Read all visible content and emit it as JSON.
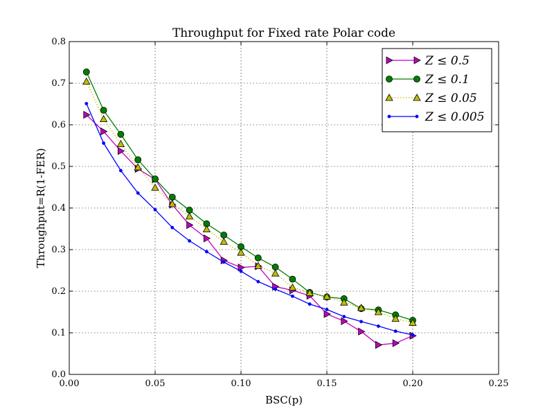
{
  "chart_data": {
    "type": "line",
    "title": "Throughput for Fixed rate Polar code",
    "xlabel": "BSC(p)",
    "ylabel": "Throughput=R(1-FER)",
    "xlim": [
      0.0,
      0.25
    ],
    "ylim": [
      0.0,
      0.8
    ],
    "xticks": [
      "0.00",
      "0.05",
      "0.10",
      "0.15",
      "0.20",
      "0.25"
    ],
    "yticks": [
      "0.0",
      "0.1",
      "0.2",
      "0.3",
      "0.4",
      "0.5",
      "0.6",
      "0.7",
      "0.8"
    ],
    "grid": true,
    "legend_position": "top-right",
    "x": [
      0.01,
      0.02,
      0.03,
      0.04,
      0.05,
      0.06,
      0.07,
      0.08,
      0.09,
      0.1,
      0.11,
      0.12,
      0.13,
      0.14,
      0.15,
      0.16,
      0.17,
      0.18,
      0.19,
      0.2
    ],
    "series": [
      {
        "name": "Z ≤ 0.5",
        "color": "#bf00bf",
        "marker": "triangle-right",
        "line_style": "solid",
        "values": [
          0.624,
          0.584,
          0.537,
          0.494,
          0.469,
          0.408,
          0.359,
          0.327,
          0.274,
          0.257,
          0.26,
          0.211,
          0.202,
          0.189,
          0.145,
          0.128,
          0.103,
          0.071,
          0.075,
          0.093
        ]
      },
      {
        "name": "Z ≤ 0.1",
        "color": "#007f00",
        "marker": "circle",
        "line_style": "solid",
        "values": [
          0.727,
          0.635,
          0.577,
          0.516,
          0.47,
          0.426,
          0.395,
          0.362,
          0.335,
          0.307,
          0.28,
          0.258,
          0.229,
          0.197,
          0.186,
          0.182,
          0.158,
          0.155,
          0.143,
          0.13
        ]
      },
      {
        "name": "Z ≤ 0.05",
        "color": "#bfbf00",
        "marker": "triangle-up",
        "line_style": "dotted",
        "values": [
          0.704,
          0.614,
          0.554,
          0.498,
          0.449,
          0.41,
          0.38,
          0.349,
          0.319,
          0.293,
          0.261,
          0.243,
          0.209,
          0.196,
          0.187,
          0.173,
          0.16,
          0.15,
          0.134,
          0.124
        ]
      },
      {
        "name": "Z ≤ 0.005",
        "color": "#0000ff",
        "marker": "dot",
        "line_style": "solid",
        "values": [
          0.651,
          0.556,
          0.49,
          0.436,
          0.396,
          0.353,
          0.321,
          0.295,
          0.27,
          0.248,
          0.223,
          0.205,
          0.188,
          0.169,
          0.156,
          0.139,
          0.127,
          0.116,
          0.104,
          0.095
        ]
      }
    ]
  }
}
